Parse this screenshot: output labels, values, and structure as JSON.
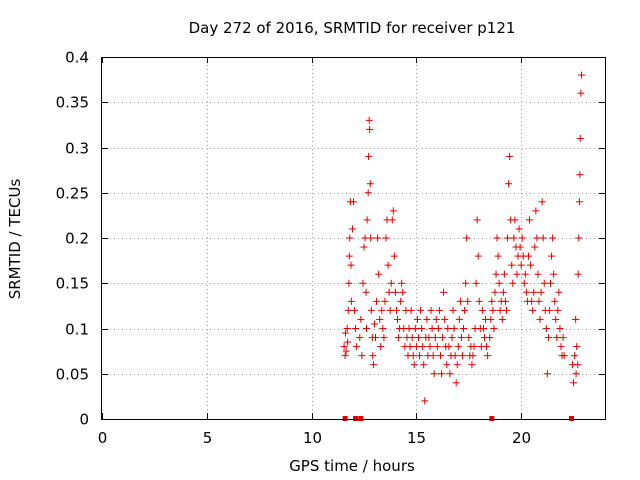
{
  "chart_data": {
    "type": "scatter",
    "title": "Day 272 of 2016, SRMTID for receiver p121",
    "xlabel": "GPS time / hours",
    "ylabel": "SRMTID / TECUs",
    "xlim": [
      0,
      24
    ],
    "ylim": [
      0,
      0.4
    ],
    "xticks": [
      0,
      5,
      10,
      15,
      20
    ],
    "yticks": [
      0,
      0.05,
      0.1,
      0.15,
      0.2,
      0.25,
      0.3,
      0.35,
      0.4
    ],
    "xtick_labels": [
      "0",
      "5",
      "10",
      "15",
      "20"
    ],
    "ytick_labels": [
      "0",
      "0.05",
      "0.1",
      "0.15",
      "0.2",
      "0.25",
      "0.3",
      "0.35",
      "0.4"
    ],
    "grid": true,
    "marker_color": "#e00000",
    "series": [
      {
        "marker": "plus",
        "points": [
          [
            11.55,
            0.08
          ],
          [
            11.6,
            0.07
          ],
          [
            11.62,
            0.095
          ],
          [
            11.65,
            0.075
          ],
          [
            11.7,
            0.1
          ],
          [
            11.72,
            0.085
          ],
          [
            11.75,
            0.12
          ],
          [
            11.78,
            0.15
          ],
          [
            11.8,
            0.18
          ],
          [
            11.82,
            0.2
          ],
          [
            11.85,
            0.24
          ],
          [
            11.88,
            0.17
          ],
          [
            11.9,
            0.13
          ],
          [
            11.95,
            0.21
          ],
          [
            12.0,
            0.24
          ],
          [
            12.05,
            0.12
          ],
          [
            12.1,
            0.1
          ],
          [
            12.15,
            0.08
          ],
          [
            12.3,
            0.09
          ],
          [
            12.35,
            0.11
          ],
          [
            12.4,
            0.07
          ],
          [
            12.45,
            0.15
          ],
          [
            12.5,
            0.19
          ],
          [
            12.55,
            0.2
          ],
          [
            12.6,
            0.14
          ],
          [
            12.62,
            0.1
          ],
          [
            12.65,
            0.22
          ],
          [
            12.7,
            0.25
          ],
          [
            12.72,
            0.29
          ],
          [
            12.75,
            0.33
          ],
          [
            12.77,
            0.32
          ],
          [
            12.8,
            0.26
          ],
          [
            12.82,
            0.2
          ],
          [
            12.85,
            0.12
          ],
          [
            12.9,
            0.09
          ],
          [
            12.92,
            0.07
          ],
          [
            12.95,
            0.06
          ],
          [
            13.0,
            0.105
          ],
          [
            13.05,
            0.09
          ],
          [
            13.1,
            0.13
          ],
          [
            13.15,
            0.2
          ],
          [
            13.2,
            0.16
          ],
          [
            13.25,
            0.11
          ],
          [
            13.3,
            0.08
          ],
          [
            13.35,
            0.12
          ],
          [
            13.4,
            0.1
          ],
          [
            13.45,
            0.09
          ],
          [
            13.5,
            0.13
          ],
          [
            13.55,
            0.2
          ],
          [
            13.6,
            0.22
          ],
          [
            13.65,
            0.17
          ],
          [
            13.7,
            0.14
          ],
          [
            13.75,
            0.12
          ],
          [
            13.8,
            0.15
          ],
          [
            13.85,
            0.22
          ],
          [
            13.9,
            0.23
          ],
          [
            13.95,
            0.18
          ],
          [
            14.0,
            0.14
          ],
          [
            14.05,
            0.12
          ],
          [
            14.1,
            0.11
          ],
          [
            14.15,
            0.09
          ],
          [
            14.2,
            0.1
          ],
          [
            14.25,
            0.13
          ],
          [
            14.3,
            0.15
          ],
          [
            14.35,
            0.14
          ],
          [
            14.4,
            0.1
          ],
          [
            14.45,
            0.08
          ],
          [
            14.5,
            0.12
          ],
          [
            14.55,
            0.09
          ],
          [
            14.6,
            0.07
          ],
          [
            14.65,
            0.1
          ],
          [
            14.7,
            0.08
          ],
          [
            14.75,
            0.12
          ],
          [
            14.8,
            0.09
          ],
          [
            14.85,
            0.07
          ],
          [
            14.9,
            0.06
          ],
          [
            14.95,
            0.1
          ],
          [
            15.0,
            0.08
          ],
          [
            15.05,
            0.11
          ],
          [
            15.1,
            0.09
          ],
          [
            15.15,
            0.07
          ],
          [
            15.2,
            0.12
          ],
          [
            15.25,
            0.1
          ],
          [
            15.3,
            0.08
          ],
          [
            15.35,
            0.06
          ],
          [
            15.4,
            0.02
          ],
          [
            15.45,
            0.09
          ],
          [
            15.5,
            0.11
          ],
          [
            15.55,
            0.07
          ],
          [
            15.6,
            0.09
          ],
          [
            15.65,
            0.08
          ],
          [
            15.7,
            0.12
          ],
          [
            15.75,
            0.1
          ],
          [
            15.8,
            0.07
          ],
          [
            15.85,
            0.05
          ],
          [
            15.9,
            0.09
          ],
          [
            15.95,
            0.11
          ],
          [
            16.0,
            0.08
          ],
          [
            16.05,
            0.1
          ],
          [
            16.1,
            0.12
          ],
          [
            16.15,
            0.07
          ],
          [
            16.2,
            0.05
          ],
          [
            16.25,
            0.09
          ],
          [
            16.3,
            0.14
          ],
          [
            16.35,
            0.11
          ],
          [
            16.4,
            0.08
          ],
          [
            16.45,
            0.06
          ],
          [
            16.5,
            0.1
          ],
          [
            16.55,
            0.08
          ],
          [
            16.6,
            0.05
          ],
          [
            16.65,
            0.07
          ],
          [
            16.7,
            0.09
          ],
          [
            16.75,
            0.12
          ],
          [
            16.8,
            0.1
          ],
          [
            16.85,
            0.07
          ],
          [
            16.9,
            0.04
          ],
          [
            16.95,
            0.06
          ],
          [
            17.0,
            0.08
          ],
          [
            17.05,
            0.11
          ],
          [
            17.1,
            0.13
          ],
          [
            17.15,
            0.09
          ],
          [
            17.2,
            0.07
          ],
          [
            17.25,
            0.1
          ],
          [
            17.3,
            0.12
          ],
          [
            17.35,
            0.15
          ],
          [
            17.4,
            0.2
          ],
          [
            17.45,
            0.13
          ],
          [
            17.5,
            0.09
          ],
          [
            17.55,
            0.07
          ],
          [
            17.6,
            0.08
          ],
          [
            17.65,
            0.06
          ],
          [
            17.7,
            0.07
          ],
          [
            17.75,
            0.08
          ],
          [
            17.8,
            0.1
          ],
          [
            17.85,
            0.15
          ],
          [
            17.9,
            0.22
          ],
          [
            17.95,
            0.18
          ],
          [
            18.0,
            0.13
          ],
          [
            18.05,
            0.1
          ],
          [
            18.1,
            0.08
          ],
          [
            18.15,
            0.12
          ],
          [
            18.2,
            0.1
          ],
          [
            18.25,
            0.09
          ],
          [
            18.3,
            0.11
          ],
          [
            18.35,
            0.08
          ],
          [
            18.4,
            0.07
          ],
          [
            18.5,
            0.09
          ],
          [
            18.55,
            0.11
          ],
          [
            18.6,
            0.13
          ],
          [
            18.65,
            0.12
          ],
          [
            18.7,
            0.1
          ],
          [
            18.75,
            0.14
          ],
          [
            18.8,
            0.16
          ],
          [
            18.85,
            0.2
          ],
          [
            18.9,
            0.18
          ],
          [
            18.95,
            0.15
          ],
          [
            19.0,
            0.12
          ],
          [
            19.05,
            0.13
          ],
          [
            19.1,
            0.11
          ],
          [
            19.15,
            0.14
          ],
          [
            19.2,
            0.16
          ],
          [
            19.25,
            0.13
          ],
          [
            19.3,
            0.12
          ],
          [
            19.35,
            0.2
          ],
          [
            19.4,
            0.26
          ],
          [
            19.45,
            0.29
          ],
          [
            19.5,
            0.22
          ],
          [
            19.55,
            0.17
          ],
          [
            19.6,
            0.15
          ],
          [
            19.65,
            0.2
          ],
          [
            19.7,
            0.22
          ],
          [
            19.75,
            0.19
          ],
          [
            19.8,
            0.16
          ],
          [
            19.85,
            0.18
          ],
          [
            19.9,
            0.21
          ],
          [
            19.95,
            0.19
          ],
          [
            20.0,
            0.17
          ],
          [
            20.05,
            0.2
          ],
          [
            20.1,
            0.18
          ],
          [
            20.15,
            0.15
          ],
          [
            20.2,
            0.16
          ],
          [
            20.25,
            0.14
          ],
          [
            20.3,
            0.13
          ],
          [
            20.35,
            0.18
          ],
          [
            20.4,
            0.22
          ],
          [
            20.45,
            0.17
          ],
          [
            20.5,
            0.13
          ],
          [
            20.55,
            0.12
          ],
          [
            20.6,
            0.14
          ],
          [
            20.65,
            0.19
          ],
          [
            20.7,
            0.23
          ],
          [
            20.75,
            0.2
          ],
          [
            20.8,
            0.16
          ],
          [
            20.85,
            0.13
          ],
          [
            20.9,
            0.11
          ],
          [
            20.95,
            0.14
          ],
          [
            21.0,
            0.24
          ],
          [
            21.05,
            0.2
          ],
          [
            21.1,
            0.15
          ],
          [
            21.15,
            0.12
          ],
          [
            21.2,
            0.1
          ],
          [
            21.25,
            0.05
          ],
          [
            21.3,
            0.09
          ],
          [
            21.35,
            0.12
          ],
          [
            21.4,
            0.15
          ],
          [
            21.45,
            0.18
          ],
          [
            21.5,
            0.2
          ],
          [
            21.55,
            0.16
          ],
          [
            21.6,
            0.13
          ],
          [
            21.65,
            0.11
          ],
          [
            21.7,
            0.09
          ],
          [
            21.75,
            0.12
          ],
          [
            21.8,
            0.14
          ],
          [
            21.85,
            0.1
          ],
          [
            21.9,
            0.08
          ],
          [
            21.95,
            0.07
          ],
          [
            22.0,
            0.09
          ],
          [
            22.05,
            0.07
          ],
          [
            22.45,
            0.06
          ],
          [
            22.5,
            0.04
          ],
          [
            22.55,
            0.07
          ],
          [
            22.6,
            0.11
          ],
          [
            22.62,
            0.05
          ],
          [
            22.65,
            0.08
          ],
          [
            22.7,
            0.06
          ],
          [
            22.72,
            0.16
          ],
          [
            22.75,
            0.2
          ],
          [
            22.78,
            0.24
          ],
          [
            22.8,
            0.27
          ],
          [
            22.82,
            0.31
          ],
          [
            22.85,
            0.36
          ],
          [
            22.88,
            0.38
          ]
        ]
      },
      {
        "marker": "square",
        "points": [
          [
            11.6,
            0
          ],
          [
            12.1,
            0
          ],
          [
            12.35,
            0
          ],
          [
            18.6,
            0
          ],
          [
            22.4,
            0
          ]
        ]
      }
    ]
  }
}
